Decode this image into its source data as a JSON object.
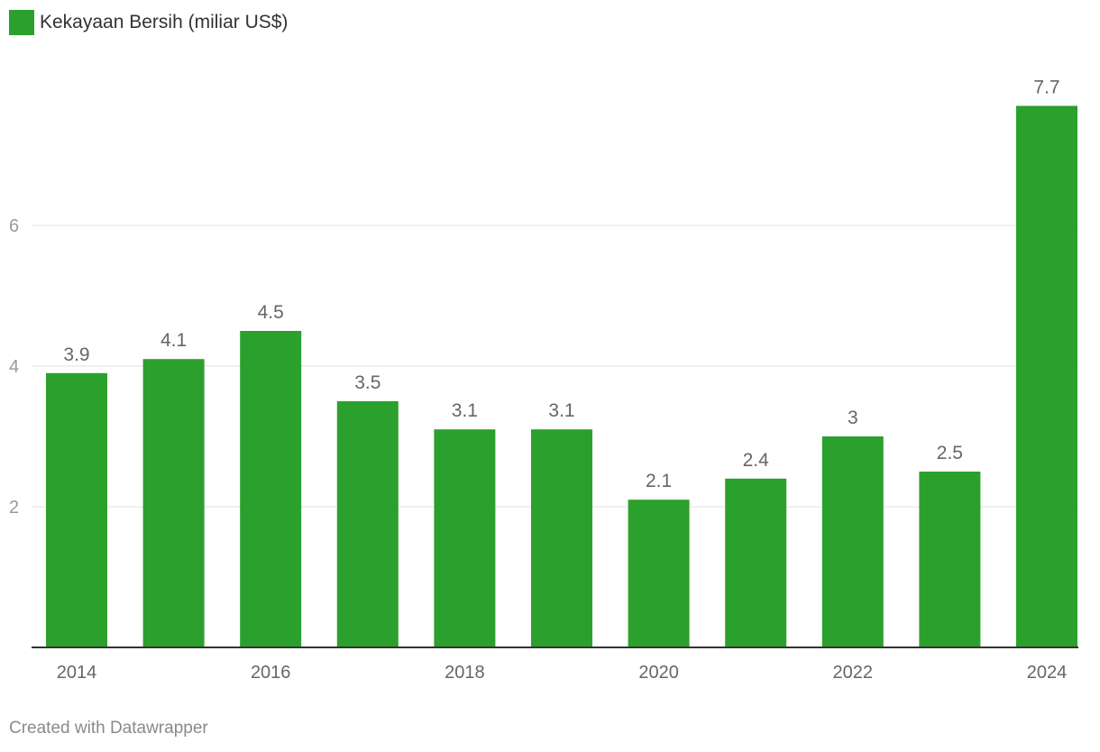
{
  "legend": {
    "label": "Kekayaan Bersih (miliar US$)",
    "color": "#2ca02c"
  },
  "footer": {
    "credit": "Created with Datawrapper"
  },
  "chart_data": {
    "type": "bar",
    "categories": [
      "2014",
      "2015",
      "2016",
      "2017",
      "2018",
      "2019",
      "2020",
      "2021",
      "2022",
      "2023",
      "2024"
    ],
    "x_tick_labels": [
      "2014",
      "2016",
      "2018",
      "2020",
      "2022",
      "2024"
    ],
    "series": [
      {
        "name": "Kekayaan Bersih (miliar US$)",
        "values": [
          3.9,
          4.1,
          4.5,
          3.5,
          3.1,
          3.1,
          2.1,
          2.4,
          3,
          2.5,
          7.7
        ],
        "value_labels": [
          "3.9",
          "4.1",
          "4.5",
          "3.5",
          "3.1",
          "3.1",
          "2.1",
          "2.4",
          "3",
          "2.5",
          "7.7"
        ]
      }
    ],
    "yticks": [
      2,
      4,
      6
    ],
    "ylim": [
      0,
      8
    ],
    "grid": true,
    "legend_position": "top-left",
    "bar_color": "#2ca02c"
  }
}
